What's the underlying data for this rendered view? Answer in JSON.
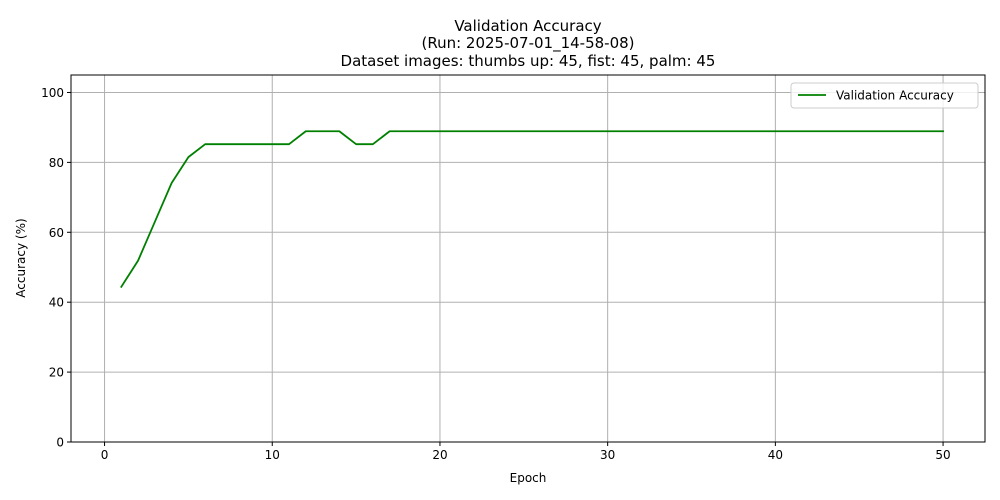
{
  "chart_data": {
    "type": "line",
    "title": [
      "Validation Accuracy",
      "(Run: 2025-07-01_14-58-08)",
      "Dataset images: thumbs up: 45, fist: 45, palm: 45"
    ],
    "xlabel": "Epoch",
    "ylabel": "Accuracy (%)",
    "xlim": [
      -2,
      52.5
    ],
    "ylim": [
      0,
      105
    ],
    "x_ticks": [
      0,
      10,
      20,
      30,
      40,
      50
    ],
    "y_ticks": [
      0,
      20,
      40,
      60,
      80,
      100
    ],
    "grid": true,
    "legend_position": "top-right",
    "series": [
      {
        "name": "Validation Accuracy",
        "color": "#008000",
        "x": [
          1,
          2,
          3,
          4,
          5,
          6,
          7,
          8,
          9,
          10,
          11,
          12,
          13,
          14,
          15,
          16,
          17,
          18,
          19,
          20,
          21,
          22,
          23,
          24,
          25,
          26,
          27,
          28,
          29,
          30,
          31,
          32,
          33,
          34,
          35,
          36,
          37,
          38,
          39,
          40,
          41,
          42,
          43,
          44,
          45,
          46,
          47,
          48,
          49,
          50
        ],
        "y": [
          44.4,
          51.9,
          63.0,
          74.1,
          81.5,
          85.2,
          85.2,
          85.2,
          85.2,
          85.2,
          85.2,
          88.9,
          88.9,
          88.9,
          85.2,
          85.2,
          88.9,
          88.9,
          88.9,
          88.9,
          88.9,
          88.9,
          88.9,
          88.9,
          88.9,
          88.9,
          88.9,
          88.9,
          88.9,
          88.9,
          88.9,
          88.9,
          88.9,
          88.9,
          88.9,
          88.9,
          88.9,
          88.9,
          88.9,
          88.9,
          88.9,
          88.9,
          88.9,
          88.9,
          88.9,
          88.9,
          88.9,
          88.9,
          88.9,
          88.9
        ]
      }
    ]
  }
}
